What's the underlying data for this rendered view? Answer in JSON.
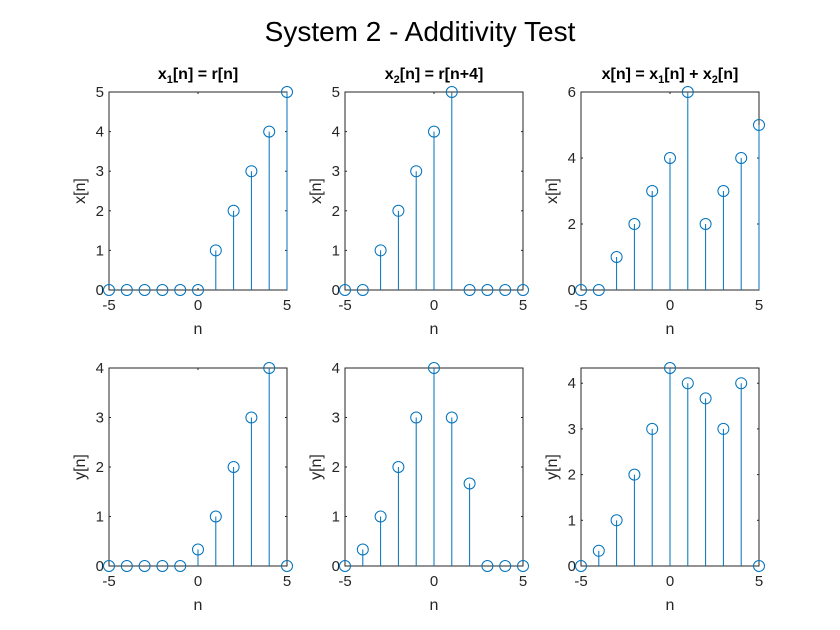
{
  "figure": {
    "title": "System 2 - Additivity Test",
    "colors": {
      "stem": "#0072BD",
      "axes": "#262626",
      "background": "#ffffff"
    }
  },
  "chart_data": [
    {
      "type": "stem",
      "title": [
        {
          "t": "x"
        },
        {
          "t": "1",
          "sub": true
        },
        {
          "t": "[n] = r[n]"
        }
      ],
      "xlabel": "n",
      "ylabel": "x[n]",
      "xlim": [
        -5,
        5
      ],
      "ylim": [
        0,
        5
      ],
      "xticks": [
        -5,
        0,
        5
      ],
      "yticks": [
        0,
        1,
        2,
        3,
        4,
        5
      ],
      "x": [
        -5,
        -4,
        -3,
        -2,
        -1,
        0,
        1,
        2,
        3,
        4,
        5
      ],
      "y": [
        0,
        0,
        0,
        0,
        0,
        0,
        1,
        2,
        3,
        4,
        5
      ]
    },
    {
      "type": "stem",
      "title": [
        {
          "t": "x"
        },
        {
          "t": "2",
          "sub": true
        },
        {
          "t": "[n] = r[n+4]"
        }
      ],
      "xlabel": "n",
      "ylabel": "x[n]",
      "xlim": [
        -5,
        5
      ],
      "ylim": [
        0,
        5
      ],
      "xticks": [
        -5,
        0,
        5
      ],
      "yticks": [
        0,
        1,
        2,
        3,
        4,
        5
      ],
      "x": [
        -5,
        -4,
        -3,
        -2,
        -1,
        0,
        1,
        2,
        3,
        4,
        5
      ],
      "y": [
        0,
        0,
        1,
        2,
        3,
        4,
        5,
        0,
        0,
        0,
        0
      ]
    },
    {
      "type": "stem",
      "title": [
        {
          "t": "x[n] = x"
        },
        {
          "t": "1",
          "sub": true
        },
        {
          "t": "[n] + x"
        },
        {
          "t": "2",
          "sub": true
        },
        {
          "t": "[n]"
        }
      ],
      "xlabel": "n",
      "ylabel": "x[n]",
      "xlim": [
        -5,
        5
      ],
      "ylim": [
        0,
        6
      ],
      "xticks": [
        -5,
        0,
        5
      ],
      "yticks": [
        0,
        2,
        4,
        6
      ],
      "x": [
        -5,
        -4,
        -3,
        -2,
        -1,
        0,
        1,
        2,
        3,
        4,
        5
      ],
      "y": [
        0,
        0,
        1,
        2,
        3,
        4,
        6,
        2,
        3,
        4,
        5
      ]
    },
    {
      "type": "stem",
      "title": [],
      "xlabel": "n",
      "ylabel": "y[n]",
      "xlim": [
        -5,
        5
      ],
      "ylim": [
        0,
        4
      ],
      "xticks": [
        -5,
        0,
        5
      ],
      "yticks": [
        0,
        1,
        2,
        3,
        4
      ],
      "x": [
        -5,
        -4,
        -3,
        -2,
        -1,
        0,
        1,
        2,
        3,
        4,
        5
      ],
      "y": [
        0,
        0,
        0,
        0,
        0,
        0.333,
        1,
        2,
        3,
        4,
        0
      ]
    },
    {
      "type": "stem",
      "title": [],
      "xlabel": "n",
      "ylabel": "y[n]",
      "xlim": [
        -5,
        5
      ],
      "ylim": [
        0,
        4
      ],
      "xticks": [
        -5,
        0,
        5
      ],
      "yticks": [
        0,
        1,
        2,
        3,
        4
      ],
      "x": [
        -5,
        -4,
        -3,
        -2,
        -1,
        0,
        1,
        2,
        3,
        4,
        5
      ],
      "y": [
        0,
        0.333,
        1,
        2,
        3,
        4,
        3,
        1.667,
        0,
        0,
        0
      ]
    },
    {
      "type": "stem",
      "title": [],
      "xlabel": "n",
      "ylabel": "y[n]",
      "xlim": [
        -5,
        5
      ],
      "ylim": [
        0,
        4.333
      ],
      "xticks": [
        -5,
        0,
        5
      ],
      "yticks": [
        0,
        1,
        2,
        3,
        4
      ],
      "x": [
        -5,
        -4,
        -3,
        -2,
        -1,
        0,
        1,
        2,
        3,
        4,
        5
      ],
      "y": [
        0,
        0.333,
        1,
        2,
        3,
        4.333,
        4,
        3.667,
        3,
        4,
        0
      ]
    }
  ]
}
